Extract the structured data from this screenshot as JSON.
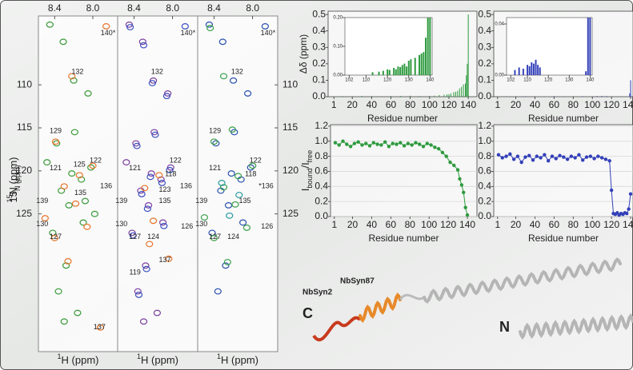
{
  "chart_data": [
    {
      "type": "scatter",
      "xlim": [
        8.57,
        7.74
      ],
      "ylim": [
        141,
        102
      ],
      "xticks": [
        8.4,
        {
          "value": 8,
          "label": "8.0"
        }
      ],
      "yticks": [
        110,
        115,
        120,
        125
      ],
      "x_label_parts": [
        "1",
        "H (ppm)"
      ],
      "y_label_parts": [
        "15",
        "N (ppm)"
      ],
      "series": [
        {
          "color": "#3a9a3a",
          "x": [
            8.45,
            8.31,
            8.2,
            8.19,
            8.05,
            8.38,
            8.22,
            8.12,
            8.02,
            8.33,
            8.25,
            8.42,
            8.1,
            8.28,
            8.36,
            8.16,
            8.3,
            8.48,
            8.08,
            7.98
          ],
          "y": [
            103,
            105,
            109.5,
            115.5,
            111,
            116.8,
            120.3,
            121,
            119.6,
            122.3,
            124,
            127.2,
            126,
            131,
            134,
            136.5,
            137.5,
            119,
            123.5,
            125
          ]
        },
        {
          "color": "#e8742a",
          "x": [
            7.86,
            8.22,
            8.39,
            8.14,
            8.0,
            8.3,
            8.18,
            8.5,
            8.4,
            8.26,
            8.06,
            7.92
          ],
          "y": [
            103.2,
            109,
            116.6,
            120.5,
            119.4,
            121.8,
            123.8,
            125.5,
            127.8,
            130.5,
            126.5,
            138.2
          ]
        }
      ],
      "annotations": [
        {
          "text": "140*",
          "x": 7.84,
          "y": 104
        },
        {
          "text": "132",
          "x": 8.16,
          "y": 108.5
        },
        {
          "text": "129",
          "x": 8.39,
          "y": 115.4
        },
        {
          "text": "121",
          "x": 8.39,
          "y": 119.7
        },
        {
          "text": "125",
          "x": 8.14,
          "y": 119.3
        },
        {
          "text": "122",
          "x": 7.97,
          "y": 118.8
        },
        {
          "text": "136",
          "x": 7.86,
          "y": 121.8
        },
        {
          "text": "135",
          "x": 8.13,
          "y": 122.6
        },
        {
          "text": "139",
          "x": 8.53,
          "y": 123.5
        },
        {
          "text": "130",
          "x": 8.53,
          "y": 126.2
        },
        {
          "text": "127",
          "x": 8.39,
          "y": 127.7
        },
        {
          "text": "137",
          "x": 7.93,
          "y": 138.2
        }
      ]
    },
    {
      "type": "scatter",
      "xlim": [
        8.57,
        7.74
      ],
      "ylim": [
        141,
        102
      ],
      "xticks": [
        8.4,
        {
          "value": 8,
          "label": "8.0"
        }
      ],
      "x_label_parts": [
        "1",
        "H (ppm)"
      ],
      "series": [
        {
          "color": "#7b3fa0",
          "x": [
            8.45,
            8.31,
            8.2,
            8.19,
            8.05,
            8.38,
            8.22,
            8.12,
            8.02,
            8.33,
            8.25,
            8.42,
            8.1,
            8.28,
            8.36,
            8.16,
            8.3,
            8.48
          ],
          "y": [
            103,
            105,
            109.5,
            115.5,
            111,
            116.8,
            120.3,
            121,
            119.6,
            122.3,
            124,
            127.2,
            126,
            131,
            134,
            136.5,
            137.5,
            119
          ]
        },
        {
          "color": "#3a4fc0",
          "x": [
            8.44,
            8.3,
            8.21,
            8.18,
            8.06,
            8.37,
            8.23,
            8.11,
            8.03,
            8.32,
            8.26,
            8.41,
            8.09,
            8.27,
            8.35,
            7.87
          ],
          "y": [
            103.3,
            105.4,
            109.8,
            115.8,
            111.3,
            117.1,
            120.7,
            121.4,
            119.9,
            122.7,
            124.4,
            127.5,
            126.4,
            131.4,
            134.4,
            103.2
          ]
        },
        {
          "color": "#e8742a",
          "x": [
            8.14,
            8.29,
            8.2,
            8.04,
            8.24
          ],
          "y": [
            120.5,
            122,
            125.8,
            130.2,
            128.5
          ]
        }
      ],
      "annotations": [
        {
          "text": "140*",
          "x": 7.84,
          "y": 104
        },
        {
          "text": "132",
          "x": 8.16,
          "y": 108.5
        },
        {
          "text": "121",
          "x": 8.39,
          "y": 119.7
        },
        {
          "text": "122",
          "x": 7.97,
          "y": 118.8
        },
        {
          "text": "118",
          "x": 8.02,
          "y": 120.4
        },
        {
          "text": "123",
          "x": 8.08,
          "y": 122.2
        },
        {
          "text": "136",
          "x": 7.86,
          "y": 121.8
        },
        {
          "text": "139",
          "x": 8.53,
          "y": 123.5
        },
        {
          "text": "135",
          "x": 8.08,
          "y": 123.5
        },
        {
          "text": "130",
          "x": 8.53,
          "y": 126.2
        },
        {
          "text": "127",
          "x": 8.39,
          "y": 127.7
        },
        {
          "text": "124",
          "x": 8.2,
          "y": 127.7
        },
        {
          "text": "126",
          "x": 7.85,
          "y": 126.5
        },
        {
          "text": "119",
          "x": 8.39,
          "y": 131.8
        },
        {
          "text": "137",
          "x": 8.08,
          "y": 130.4
        }
      ]
    },
    {
      "type": "scatter",
      "xlim": [
        8.57,
        7.74
      ],
      "ylim": [
        141,
        102
      ],
      "xticks": [
        8.4,
        {
          "value": 8,
          "label": "8.0"
        }
      ],
      "yticks": [
        110,
        115,
        120,
        125
      ],
      "x_label_parts": [
        "1",
        "H (ppm)"
      ],
      "series": [
        {
          "color": "#2a4fb0",
          "x": [
            8.45,
            8.31,
            8.2,
            8.19,
            8.05,
            8.38,
            8.22,
            8.12,
            8.02,
            8.33,
            8.25,
            8.42,
            8.1,
            8.28,
            8.36,
            7.87
          ],
          "y": [
            103,
            105,
            109.5,
            115.5,
            111,
            116.8,
            120.3,
            121,
            119.6,
            122.3,
            124,
            127.2,
            126,
            131,
            134,
            103.2
          ]
        },
        {
          "color": "#3aa04a",
          "x": [
            8.44,
            8.3,
            8.21,
            8.4,
            8.15,
            8.0,
            8.3,
            8.18,
            8.5,
            8.4,
            8.26,
            8.06
          ],
          "y": [
            103.4,
            109,
            115.2,
            116.6,
            120.6,
            119.4,
            121.9,
            123.9,
            125.4,
            127.8,
            130.6,
            126.6
          ]
        },
        {
          "color": "#2a9aa0",
          "x": [
            8.32,
            8.24,
            8.14
          ],
          "y": [
            121.4,
            125.2,
            122.8
          ]
        }
      ],
      "annotations": [
        {
          "text": "140*",
          "x": 7.84,
          "y": 104
        },
        {
          "text": "132",
          "x": 8.16,
          "y": 108.5
        },
        {
          "text": "129",
          "x": 8.39,
          "y": 115.4
        },
        {
          "text": "121",
          "x": 8.39,
          "y": 119.7
        },
        {
          "text": "122",
          "x": 7.97,
          "y": 118.8
        },
        {
          "text": "118",
          "x": 8.02,
          "y": 120.4
        },
        {
          "text": "*136",
          "x": 7.86,
          "y": 121.8
        },
        {
          "text": "139",
          "x": 8.53,
          "y": 123.5
        },
        {
          "text": "135",
          "x": 8.08,
          "y": 123.5
        },
        {
          "text": "130",
          "x": 8.53,
          "y": 126.2
        },
        {
          "text": "126",
          "x": 7.85,
          "y": 126.5
        },
        {
          "text": "127",
          "x": 8.39,
          "y": 127.7
        },
        {
          "text": "124",
          "x": 8.2,
          "y": 127.7
        }
      ]
    },
    {
      "type": "bar",
      "color": "#2e9a3e",
      "xlim": [
        -5,
        149
      ],
      "ylim": [
        0,
        0.52
      ],
      "xticks": [
        1,
        20,
        40,
        60,
        80,
        100,
        120,
        140
      ],
      "yticks": [
        {
          "value": 0,
          "label": "0.0"
        },
        0.1,
        0.2,
        0.3,
        0.4,
        0.5
      ],
      "x_label": "Residue number",
      "y_label": "Δδ (ppm)",
      "x": [
        10,
        20,
        30,
        40,
        50,
        60,
        70,
        80,
        90,
        100,
        105,
        110,
        115,
        118,
        120,
        122,
        125,
        127,
        129,
        131,
        133,
        135,
        137,
        138,
        139,
        140
      ],
      "values": [
        0.004,
        0.003,
        0.005,
        0.004,
        0.003,
        0.004,
        0.005,
        0.006,
        0.004,
        0.005,
        0.006,
        0.01,
        0.012,
        0.014,
        0.015,
        0.02,
        0.028,
        0.03,
        0.035,
        0.05,
        0.06,
        0.075,
        0.08,
        0.13,
        0.2,
        0.5
      ]
    },
    {
      "type": "bar",
      "color": "#2e9a3e",
      "xlim": [
        100,
        141
      ],
      "ylim": [
        0,
        0.2
      ],
      "xticks": [
        102,
        110,
        120,
        130,
        140
      ],
      "yticks": [
        {
          "value": 0,
          "label": "0.00"
        },
        {
          "value": 0.1,
          "label": "0.10"
        },
        {
          "value": 0.2,
          "label": "0.20"
        }
      ],
      "x": [
        113,
        116,
        118,
        120,
        121,
        123,
        124,
        125,
        126,
        127,
        128,
        129,
        130,
        131,
        133,
        135,
        136,
        137,
        138,
        139,
        140
      ],
      "values": [
        0.01,
        0.012,
        0.015,
        0.02,
        0.018,
        0.025,
        0.02,
        0.03,
        0.028,
        0.035,
        0.04,
        0.03,
        0.05,
        0.055,
        0.06,
        0.07,
        0.075,
        0.08,
        0.13,
        0.2,
        0.2
      ]
    },
    {
      "type": "bar",
      "color": "#3340b8",
      "xlim": [
        -3,
        150
      ],
      "ylim": [
        0,
        0.52
      ],
      "xticks": [
        1,
        20,
        40,
        60,
        80,
        100,
        120,
        140
      ],
      "yticks": [
        {
          "value": 0,
          "label": "0.0"
        },
        0.1,
        0.2,
        0.3,
        0.4,
        0.5
      ],
      "x_label": "Residue number",
      "x": [
        10,
        20,
        30,
        40,
        50,
        60,
        70,
        80,
        90,
        100,
        105,
        110,
        115,
        120,
        130,
        139,
        140
      ],
      "values": [
        0.002,
        0.002,
        0.003,
        0.002,
        0.002,
        0.003,
        0.002,
        0.002,
        0.003,
        0.002,
        0.004,
        0.005,
        0.004,
        0.002,
        0.002,
        0.02,
        0.1
      ]
    },
    {
      "type": "bar",
      "color": "#3340b8",
      "xlim": [
        100,
        141
      ],
      "ylim": [
        0,
        0.045
      ],
      "xticks": [
        102,
        110,
        120,
        130,
        140
      ],
      "yticks": [
        {
          "value": 0,
          "label": "0.00"
        },
        {
          "value": 0.04,
          "label": "0.04"
        }
      ],
      "x": [
        104,
        106,
        108,
        110,
        111,
        112,
        113,
        114,
        115,
        116,
        138,
        139,
        140
      ],
      "values": [
        0.004,
        0.006,
        0.005,
        0.008,
        0.007,
        0.01,
        0.009,
        0.012,
        0.008,
        0.006,
        0.003,
        0.045,
        0.045
      ]
    },
    {
      "type": "line",
      "color": "#2e9a3e",
      "xlim": [
        -3,
        150
      ],
      "ylim": [
        0,
        1.22
      ],
      "grid": true,
      "xticks": [
        1,
        20,
        40,
        60,
        80,
        100,
        120,
        140
      ],
      "yticks": [
        {
          "value": 0,
          "label": "0.0"
        },
        0.2,
        0.4,
        0.6,
        0.8,
        {
          "value": 1,
          "label": "1.0"
        },
        1.2
      ],
      "x_label": "Residue number",
      "y_label_parts": [
        "I",
        "bound",
        "/I",
        "free"
      ],
      "x": [
        2,
        6,
        10,
        14,
        18,
        22,
        26,
        30,
        34,
        38,
        42,
        46,
        50,
        54,
        58,
        62,
        66,
        70,
        74,
        78,
        82,
        86,
        90,
        94,
        98,
        102,
        106,
        110,
        114,
        118,
        122,
        126,
        130,
        132,
        134,
        136,
        138,
        140
      ],
      "values": [
        0.98,
        0.95,
        1.0,
        0.96,
        0.93,
        0.97,
        0.99,
        0.95,
        0.97,
        0.94,
        0.98,
        0.96,
        0.95,
        0.99,
        0.93,
        0.97,
        0.96,
        0.98,
        0.94,
        0.97,
        0.95,
        0.98,
        0.96,
        0.93,
        0.97,
        0.95,
        0.92,
        0.9,
        0.85,
        0.8,
        0.72,
        0.68,
        0.62,
        0.5,
        0.42,
        0.32,
        0.12,
        0.02
      ]
    },
    {
      "type": "line",
      "color": "#3340b8",
      "xlim": [
        -3,
        150
      ],
      "ylim": [
        0,
        1.22
      ],
      "grid": true,
      "xticks": [
        1,
        20,
        40,
        60,
        80,
        100,
        120,
        140
      ],
      "yticks": [
        {
          "value": 0,
          "label": "0.0"
        },
        0.2,
        0.4,
        0.6,
        0.8,
        {
          "value": 1,
          "label": "1.0"
        },
        1.2
      ],
      "x_label": "Residue number",
      "x": [
        2,
        6,
        10,
        14,
        18,
        22,
        26,
        30,
        34,
        38,
        42,
        46,
        50,
        54,
        58,
        62,
        66,
        70,
        74,
        78,
        82,
        86,
        90,
        94,
        98,
        102,
        106,
        110,
        114,
        118,
        120,
        122,
        124,
        126,
        128,
        130,
        132,
        134,
        136,
        138,
        140
      ],
      "values": [
        0.82,
        0.78,
        0.8,
        0.83,
        0.76,
        0.8,
        0.72,
        0.79,
        0.81,
        0.75,
        0.8,
        0.78,
        0.82,
        0.74,
        0.8,
        0.77,
        0.81,
        0.79,
        0.76,
        0.8,
        0.78,
        0.82,
        0.75,
        0.79,
        0.8,
        0.77,
        0.8,
        0.78,
        0.76,
        0.74,
        0.35,
        0.04,
        0.03,
        0.05,
        0.02,
        0.04,
        0.03,
        0.05,
        0.04,
        0.1,
        0.3
      ]
    }
  ],
  "structure": {
    "labels": [
      "NbSyn2",
      "NbSyn87",
      "C",
      "N"
    ]
  }
}
